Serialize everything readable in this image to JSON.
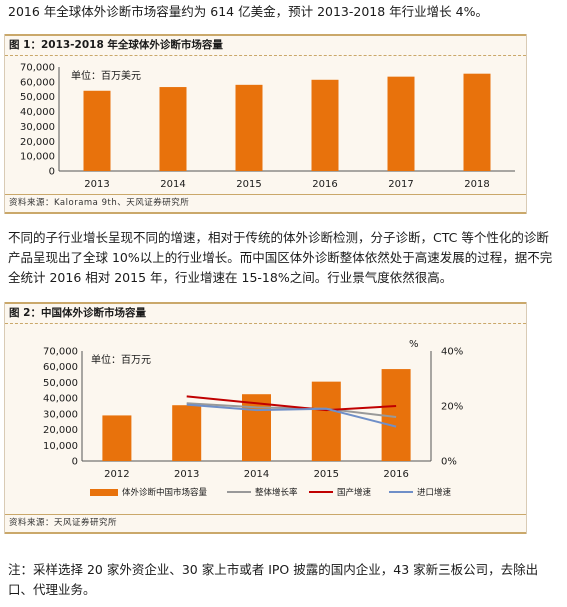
{
  "paragraphs": {
    "p1": "2016 年全球体外诊断市场容量约为 614 亿美金，预计 2013-2018 年行业增长 4%。",
    "p2": "不同的子行业增长呈现不同的增速，相对于传统的体外诊断检测，分子诊断，CTC 等个性化的诊断产品呈现出了全球 10%以上的行业增长。而中国区体外诊断整体依然处于高速发展的过程，据不完全统计 2016 相对 2015 年，行业增速在 15-18%之间。行业景气度依然很高。",
    "p3": "注：采样选择 20 家外资企业、30 家上市或者 IPO 披露的国内企业，43 家新三板公司，去除出口、代理业务。"
  },
  "figure1": {
    "title": "图 1：2013-2018 年全球体外诊断市场容量",
    "source": "资料来源：Kalorama 9th、天风证券研究所",
    "unit_label": "单位：百万美元"
  },
  "figure2": {
    "title": "图 2：中国体外诊断市场容量",
    "source": "资料来源：天风证券研究所",
    "unit_label": "单位：百万元",
    "right_axis_label": "%"
  },
  "colors": {
    "bar": "#e8720c",
    "overall": "#999999",
    "domestic": "#c00000",
    "import": "#6f8fc8"
  },
  "chart_data": [
    {
      "type": "bar",
      "categories": [
        "2013",
        "2014",
        "2015",
        "2016",
        "2017",
        "2018"
      ],
      "values": [
        54000,
        56500,
        58000,
        61400,
        63500,
        65500
      ],
      "ylim": [
        0,
        70000
      ],
      "yticks": [
        "0",
        "10,000",
        "20,000",
        "30,000",
        "40,000",
        "50,000",
        "60,000",
        "70,000"
      ]
    },
    {
      "type": "bar",
      "categories": [
        "2012",
        "2013",
        "2014",
        "2015",
        "2016"
      ],
      "bar_series": {
        "name": "体外诊断中国市场容量",
        "values": [
          29000,
          35500,
          42500,
          50500,
          58500
        ]
      },
      "ylim": [
        0,
        70000
      ],
      "yticks": [
        "0",
        "10,000",
        "20,000",
        "30,000",
        "40,000",
        "50,000",
        "60,000",
        "70,000"
      ],
      "y2lim": [
        0,
        40
      ],
      "y2ticks": [
        "0%",
        "20%",
        "40%"
      ],
      "line_series": [
        {
          "name": "整体增长率",
          "values": [
            null,
            21,
            19.5,
            19,
            16
          ]
        },
        {
          "name": "国产增速",
          "values": [
            null,
            23.5,
            21,
            18.5,
            20
          ]
        },
        {
          "name": "进口增速",
          "values": [
            null,
            20.5,
            18.5,
            19,
            12.5
          ]
        }
      ]
    }
  ]
}
